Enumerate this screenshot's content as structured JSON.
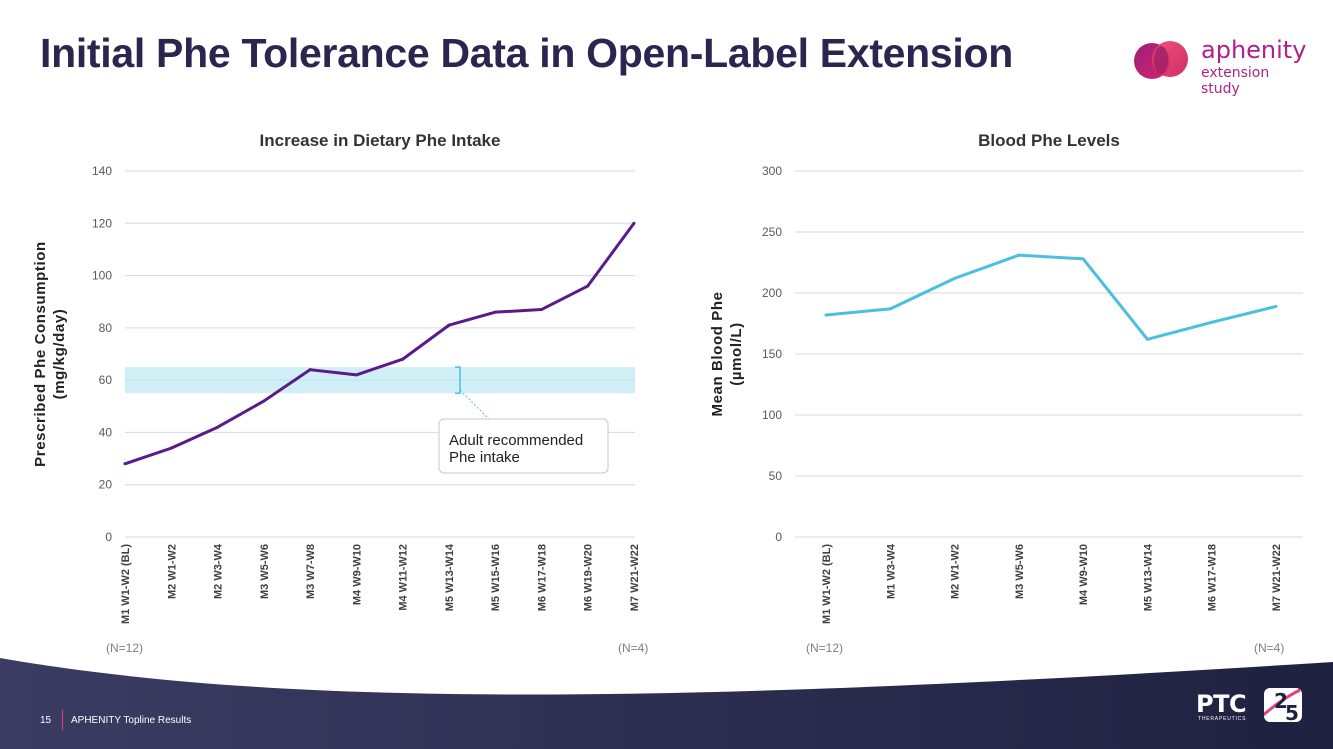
{
  "slide_title": "Initial Phe Tolerance Data in Open-Label Extension",
  "logo": {
    "name": "aphenity",
    "subtitle": "extension study"
  },
  "chart_data": [
    {
      "type": "line",
      "title": "Increase in Dietary Phe Intake",
      "ylabel": [
        "Prescribed Phe Consumption",
        "(mg/kg/day)"
      ],
      "xlabel": "",
      "ylim": [
        0,
        140
      ],
      "yticks": [
        0,
        20,
        40,
        60,
        80,
        100,
        120,
        140
      ],
      "categories": [
        "M1 W1-W2 (BL)",
        "M2 W1-W2",
        "M2 W3-W4",
        "M3 W5-W6",
        "M3 W7-W8",
        "M4 W9-W10",
        "M4 W11-W12",
        "M5 W13-W14",
        "M5 W15-W16",
        "M6 W17-W18",
        "M6 W19-W20",
        "M7 W21-W22"
      ],
      "series": [
        {
          "name": "Prescribed Phe Consumption",
          "color": "#5b1a8a",
          "values": [
            28,
            34,
            42,
            52,
            64,
            62,
            68,
            81,
            86,
            87,
            96,
            120
          ]
        }
      ],
      "band": {
        "label": "Adult recommended Phe intake",
        "range": [
          55,
          65
        ],
        "color": "#c9ecf5"
      },
      "callout": [
        "Adult recommended",
        "Phe intake"
      ],
      "n_start": "(N=12)",
      "n_end": "(N=4)"
    },
    {
      "type": "line",
      "title": "Blood Phe Levels",
      "ylabel": [
        "Mean Blood Phe",
        "(µmol/L)"
      ],
      "xlabel": "",
      "ylim": [
        0,
        300
      ],
      "yticks": [
        0,
        50,
        100,
        150,
        200,
        250,
        300
      ],
      "categories": [
        "M1 W1-W2 (BL)",
        "M1 W3-W4",
        "M2 W1-W2",
        "M3 W5-W6",
        "M4 W9-W10",
        "M5 W13-W14",
        "M6 W17-W18",
        "M7 W21-W22"
      ],
      "series": [
        {
          "name": "Mean Blood Phe",
          "color": "#4bbfe0",
          "values": [
            182,
            187,
            212,
            231,
            228,
            162,
            176,
            189
          ]
        }
      ],
      "n_start": "(N=12)",
      "n_end": "(N=4)"
    }
  ],
  "footer": {
    "page_number": "15",
    "caption": "APHENITY Topline Results",
    "company": "PTC",
    "company_sub": "THERAPEUTICS",
    "anniversary_a": "2",
    "anniversary_b": "5"
  }
}
